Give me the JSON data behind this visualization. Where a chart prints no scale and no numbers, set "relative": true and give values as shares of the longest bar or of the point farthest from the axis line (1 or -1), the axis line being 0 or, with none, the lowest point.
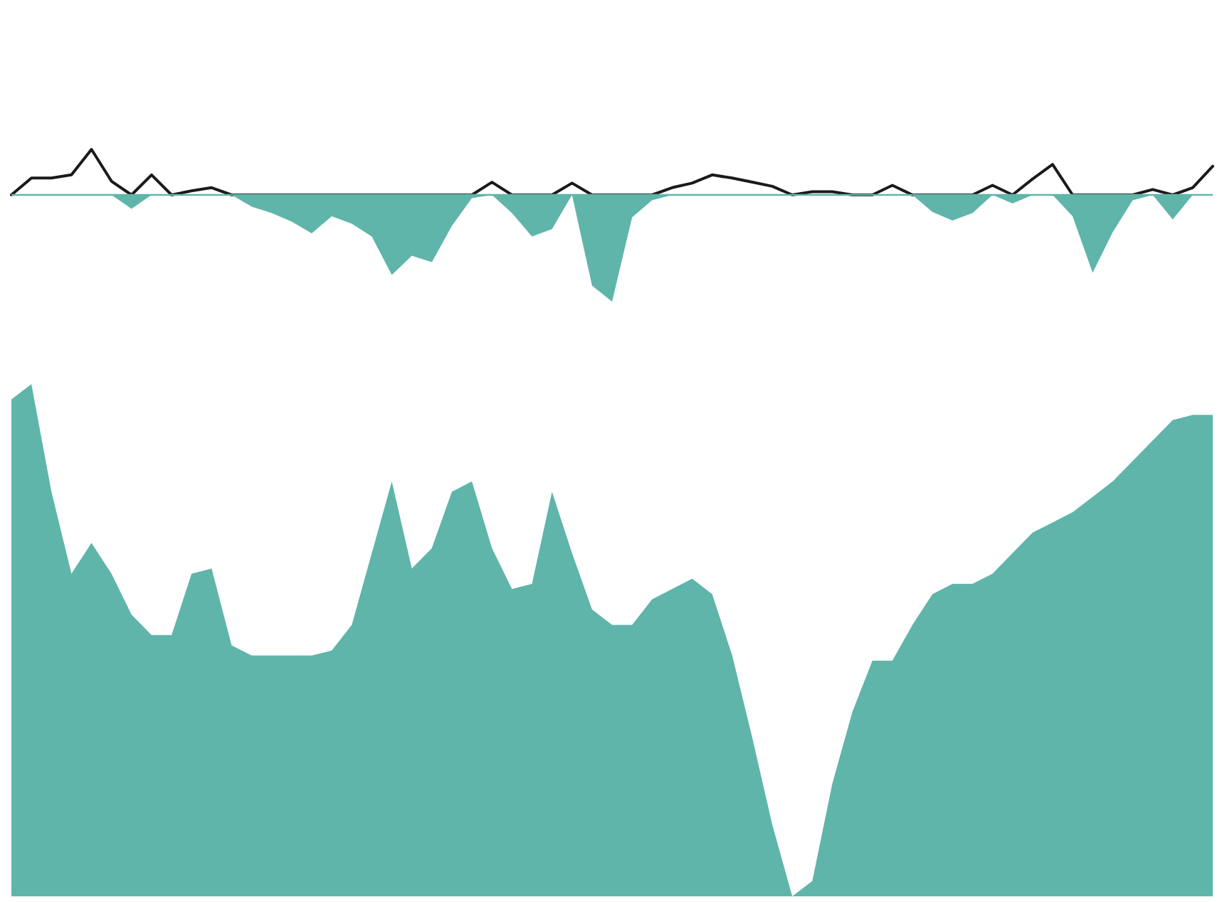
{
  "chart_data": [
    {
      "type": "line",
      "relative": true,
      "categories": [
        null,
        null,
        null,
        null,
        null,
        null,
        null,
        null,
        null,
        null,
        null,
        null,
        null,
        null,
        null,
        null,
        null,
        null,
        null,
        null,
        null,
        null,
        null,
        null,
        null,
        null,
        null,
        null,
        null,
        null,
        null,
        null,
        null,
        null,
        null,
        null,
        null,
        null,
        null,
        null,
        null,
        null,
        null,
        null,
        null,
        null,
        null,
        null,
        null,
        null,
        null,
        null,
        null,
        null,
        null,
        null,
        null,
        null,
        null,
        null,
        null
      ],
      "series": [
        {
          "color": "#1a1a1a",
          "values": [
            0,
            0.37,
            0.37,
            0.44,
            1,
            0.3,
            0,
            0.44,
            0,
            0.09,
            0.16,
            0,
            0,
            0,
            0,
            0,
            0,
            0,
            0,
            0,
            0,
            0,
            0,
            0,
            0.28,
            0,
            0,
            0,
            0.26,
            0,
            0,
            0,
            0,
            0.16,
            0.26,
            0.44,
            0.37,
            0.28,
            0.19,
            0,
            0.07,
            0.07,
            0,
            0,
            0.21,
            0,
            0,
            0,
            0,
            0.21,
            0,
            0.35,
            0.67,
            0,
            0,
            0,
            0,
            0.12,
            0,
            0.16,
            0.63
          ]
        }
      ]
    },
    {
      "type": "area",
      "relative": true,
      "categories": [
        null,
        null,
        null,
        null,
        null,
        null,
        null,
        null,
        null,
        null,
        null,
        null,
        null,
        null,
        null,
        null,
        null,
        null,
        null,
        null,
        null,
        null,
        null,
        null,
        null,
        null,
        null,
        null,
        null,
        null,
        null,
        null,
        null,
        null,
        null,
        null,
        null,
        null,
        null,
        null,
        null,
        null,
        null,
        null,
        null,
        null,
        null,
        null,
        null,
        null,
        null,
        null,
        null,
        null,
        null,
        null,
        null,
        null,
        null,
        null,
        null
      ],
      "series": [
        {
          "color": "#5fb5aa",
          "values": [
            0,
            0,
            0,
            0,
            0,
            0,
            -0.13,
            0,
            0,
            0,
            0,
            0,
            -0.11,
            -0.17,
            -0.25,
            -0.36,
            -0.2,
            -0.27,
            -0.39,
            -0.75,
            -0.57,
            -0.63,
            -0.29,
            -0.03,
            0,
            -0.17,
            -0.39,
            -0.32,
            0,
            -0.85,
            -1,
            -0.21,
            -0.05,
            0,
            0,
            0,
            0,
            0,
            0,
            0,
            0,
            0,
            0,
            0,
            0,
            0,
            -0.16,
            -0.24,
            -0.17,
            0,
            -0.08,
            0,
            0,
            -0.2,
            -0.73,
            -0.35,
            -0.05,
            0,
            -0.23,
            0,
            0
          ]
        }
      ]
    },
    {
      "type": "area",
      "relative": true,
      "categories": [
        null,
        null,
        null,
        null,
        null,
        null,
        null,
        null,
        null,
        null,
        null,
        null,
        null,
        null,
        null,
        null,
        null,
        null,
        null,
        null,
        null,
        null,
        null,
        null,
        null,
        null,
        null,
        null,
        null,
        null,
        null,
        null,
        null,
        null,
        null,
        null,
        null,
        null,
        null,
        null,
        null,
        null,
        null,
        null,
        null,
        null,
        null,
        null,
        null,
        null,
        null,
        null,
        null,
        null,
        null,
        null,
        null,
        null,
        null,
        null,
        null
      ],
      "series": [
        {
          "color": "#5fb5aa",
          "values": [
            0.97,
            1,
            0.79,
            0.63,
            0.69,
            0.63,
            0.55,
            0.51,
            0.51,
            0.63,
            0.64,
            0.49,
            0.47,
            0.47,
            0.47,
            0.47,
            0.48,
            0.53,
            0.67,
            0.81,
            0.64,
            0.68,
            0.79,
            0.81,
            0.68,
            0.6,
            0.61,
            0.79,
            0.67,
            0.56,
            0.53,
            0.53,
            0.58,
            0.6,
            0.62,
            0.59,
            0.47,
            0.31,
            0.14,
            0,
            0.03,
            0.22,
            0.36,
            0.46,
            0.46,
            0.53,
            0.59,
            0.61,
            0.61,
            0.63,
            0.67,
            0.71,
            0.73,
            0.75,
            0.78,
            0.81,
            0.85,
            0.89,
            0.93,
            0.94,
            0.94
          ]
        }
      ]
    }
  ]
}
